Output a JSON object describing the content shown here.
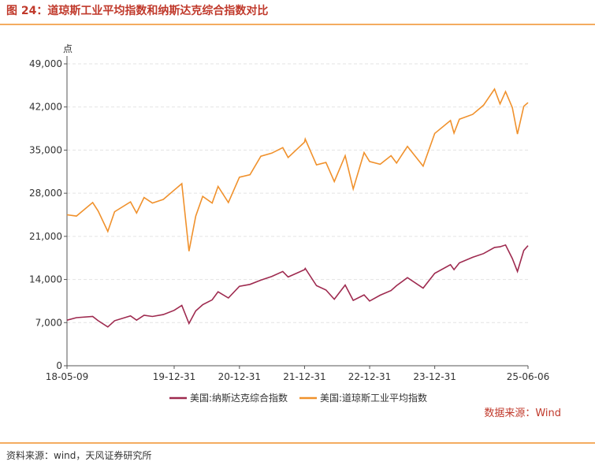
{
  "header": {
    "title": "图 24：道琼斯工业平均指数和纳斯达克综合指数对比"
  },
  "chart_data": {
    "type": "line",
    "y_unit": "点",
    "source_note": "数据来源：Wind",
    "x": [
      "18-05-09",
      "18-07-01",
      "18-09-30",
      "18-10-31",
      "18-12-24",
      "19-01-31",
      "19-04-30",
      "19-06-03",
      "19-07-15",
      "19-08-31",
      "19-10-31",
      "19-12-31",
      "20-02-12",
      "20-03-23",
      "20-04-30",
      "20-06-08",
      "20-07-31",
      "20-09-02",
      "20-10-30",
      "20-12-31",
      "21-02-28",
      "21-04-30",
      "21-06-30",
      "21-08-31",
      "21-09-30",
      "21-12-31",
      "22-01-04",
      "22-03-08",
      "22-04-30",
      "22-06-16",
      "22-08-16",
      "22-09-30",
      "22-11-30",
      "22-12-31",
      "23-02-28",
      "23-04-30",
      "23-05-31",
      "23-07-31",
      "23-10-27",
      "23-12-31",
      "24-03-28",
      "24-04-17",
      "24-05-17",
      "24-07-31",
      "24-09-30",
      "24-11-30",
      "24-12-31",
      "25-01-31",
      "25-03-10",
      "25-04-08",
      "25-05-13",
      "25-06-06"
    ],
    "series": [
      {
        "name": "美国:纳斯达克综合指数",
        "color": "#9e2a4f",
        "values": [
          7400,
          7800,
          8000,
          7300,
          6300,
          7300,
          8100,
          7400,
          8200,
          8000,
          8300,
          9000,
          9800,
          6860,
          8900,
          9900,
          10700,
          12000,
          11000,
          12900,
          13200,
          13900,
          14500,
          15300,
          14400,
          15600,
          15800,
          13000,
          12300,
          10800,
          13100,
          10600,
          11500,
          10500,
          11450,
          12200,
          13000,
          14300,
          12600,
          15000,
          16400,
          15600,
          16700,
          17600,
          18200,
          19200,
          19300,
          19600,
          17400,
          15300,
          18700,
          19500
        ]
      },
      {
        "name": "美国:道琼斯工业平均指数",
        "color": "#f0912c",
        "values": [
          24500,
          24300,
          26500,
          25100,
          21800,
          25000,
          26600,
          24800,
          27300,
          26400,
          27000,
          28500,
          29550,
          18590,
          24300,
          27500,
          26400,
          29100,
          26500,
          30600,
          31000,
          34000,
          34500,
          35400,
          33800,
          36300,
          36800,
          32600,
          33000,
          29900,
          34100,
          28700,
          34600,
          33150,
          32700,
          34100,
          32900,
          35600,
          32400,
          37700,
          39800,
          37750,
          40000,
          40800,
          42300,
          44900,
          42500,
          44500,
          41900,
          37600,
          42100,
          42700
        ]
      }
    ],
    "ylim": [
      0,
      49000
    ],
    "yticks": [
      0,
      {
        "value": 7000,
        "label": "7,000"
      },
      {
        "value": 14000,
        "label": "14,000"
      },
      {
        "value": 21000,
        "label": "21,000"
      },
      {
        "value": 28000,
        "label": "28,000"
      },
      {
        "value": 35000,
        "label": "35,000"
      },
      {
        "value": 42000,
        "label": "42,000"
      },
      {
        "value": 49000,
        "label": "49,000"
      }
    ],
    "xticks": [
      "18-05-09",
      "19-12-31",
      "20-12-31",
      "21-12-31",
      "22-12-31",
      "23-12-31",
      "25-06-06"
    ],
    "grid": true
  },
  "footer": {
    "source": "资料来源：wind，天风证券研究所"
  }
}
